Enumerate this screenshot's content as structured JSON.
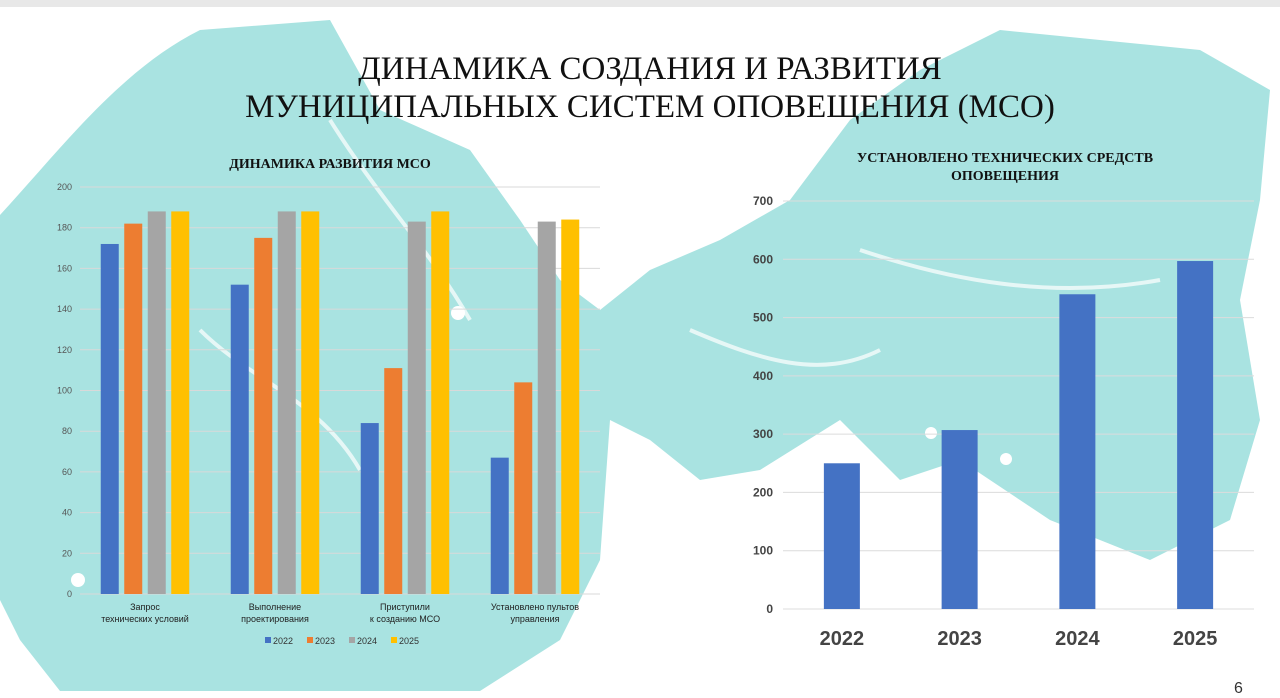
{
  "title_line1": "ДИНАМИКА СОЗДАНИЯ И РАЗВИТИЯ",
  "title_line2": "МУНИЦИПАЛЬНЫХ СИСТЕМ ОПОВЕЩЕНИЯ (МСО)",
  "page_number": "6",
  "colors": {
    "map": "#a9e3e1",
    "s2022": "#4472c4",
    "s2023": "#ed7d31",
    "s2024": "#a5a5a5",
    "s2025": "#ffc000"
  },
  "chart_data": [
    {
      "type": "bar",
      "title": "ДИНАМИКА РАЗВИТИЯ МСО",
      "categories": [
        "Запрос\nтехнических условий",
        "Выполнение\nпроектирования",
        "Приступили\nк созданию МСО",
        "Установлено пультов\nуправления"
      ],
      "series": [
        {
          "name": "2022",
          "values": [
            172,
            152,
            84,
            67
          ]
        },
        {
          "name": "2023",
          "values": [
            182,
            175,
            111,
            104
          ]
        },
        {
          "name": "2024",
          "values": [
            188,
            188,
            183,
            183
          ]
        },
        {
          "name": "2025",
          "values": [
            188,
            188,
            188,
            184
          ]
        }
      ],
      "ylim": [
        0,
        200
      ],
      "yticks": [
        0,
        20,
        40,
        60,
        80,
        100,
        120,
        140,
        160,
        180,
        200
      ],
      "grid": true,
      "legend": "bottom"
    },
    {
      "type": "bar",
      "title": "УСТАНОВЛЕНО ТЕХНИЧЕСКИХ СРЕДСТВ ОПОВЕЩЕНИЯ",
      "categories": [
        "2022",
        "2023",
        "2024",
        "2025"
      ],
      "values": [
        250,
        307,
        540,
        597
      ],
      "ylim": [
        0,
        700
      ],
      "yticks": [
        0,
        100,
        200,
        300,
        400,
        500,
        600,
        700
      ],
      "grid": true
    }
  ]
}
